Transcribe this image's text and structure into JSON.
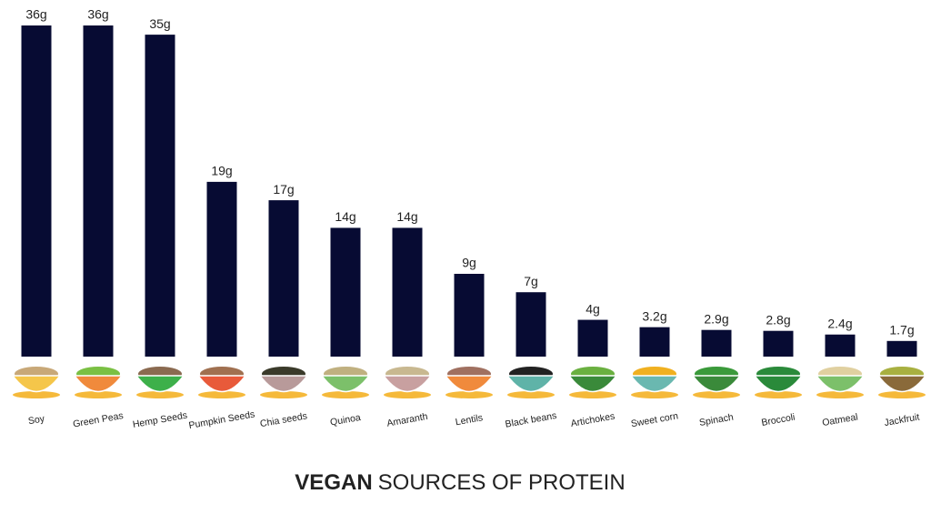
{
  "chart_data": {
    "type": "bar",
    "title": [
      "VEGAN",
      "SOURCES OF PROTEIN"
    ],
    "categories": [
      "Soy",
      "Green Peas",
      "Hemp Seeds",
      "Pumpkin Seeds",
      "Chia seeds",
      "Quinoa",
      "Amaranth",
      "Lentils",
      "Black beans",
      "Artichokes",
      "Sweet corn",
      "Spinach",
      "Broccoli",
      "Oatmeal",
      "Jackfruit"
    ],
    "values": [
      36,
      36,
      35,
      19,
      17,
      14,
      14,
      9,
      7,
      4,
      3.2,
      2.9,
      2.8,
      2.4,
      1.7
    ],
    "value_labels": [
      "36g",
      "36g",
      "35g",
      "19g",
      "17g",
      "14g",
      "14g",
      "9g",
      "7g",
      "4g",
      "3.2g",
      "2.9g",
      "2.8g",
      "2.4g",
      "1.7g"
    ],
    "color": "#070b33"
  }
}
